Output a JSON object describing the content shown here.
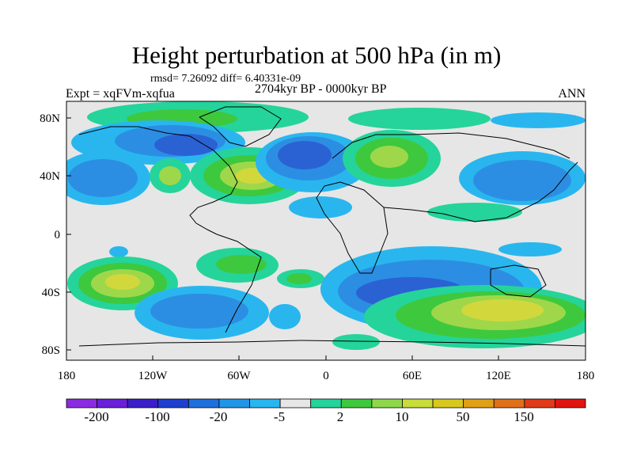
{
  "title": "Height perturbation at 500 hPa (in m)",
  "stats": "rmsd= 7.26092 diff= 6.40331e-09",
  "experiment": "Expt = xqFVm-xqfua",
  "period": "2704kyr BP - 0000kyr BP",
  "season": "ANN",
  "axes": {
    "lat_ticks": [
      "80N",
      "40N",
      "0",
      "40S",
      "80S"
    ],
    "lon_ticks": [
      "180",
      "120W",
      "60W",
      "0",
      "60E",
      "120E",
      "180"
    ]
  },
  "colorbar": {
    "colors": [
      "#8a2be2",
      "#6a1fd8",
      "#3b1fc8",
      "#1f3fd0",
      "#1f6fdc",
      "#2196e6",
      "#29b6ef",
      "#e6e6e6",
      "#25d49a",
      "#3ec83e",
      "#8ed84a",
      "#c8dc3c",
      "#d8c81e",
      "#e0a018",
      "#e07018",
      "#e03a18",
      "#e01410"
    ],
    "labels": [
      "-200",
      "-100",
      "-20",
      "-5",
      "2",
      "10",
      "50",
      "150"
    ]
  },
  "levels": {
    "neg3": "#2a62d4",
    "neg2": "#2c8ee2",
    "neg1": "#29b6ef",
    "pos1": "#25d49a",
    "pos2": "#3ec83e",
    "pos3": "#9ed84a",
    "pos4": "#d2d83c",
    "pos5": "#e0bc2a",
    "neutral": "#e6e6e6"
  }
}
